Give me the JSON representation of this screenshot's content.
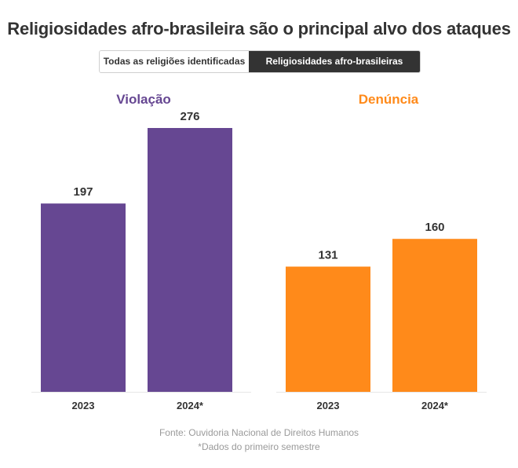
{
  "title": "Religiosidades afro-brasileira são o principal alvo dos ataques",
  "toggle": {
    "options": [
      "Todas as religiões identificadas",
      "Religiosidades afro-brasileiras"
    ],
    "selected": "Religiosidades afro-brasileiras"
  },
  "colors": {
    "violacao": "#664792",
    "denuncia": "#FF8A1A",
    "text": "#333333",
    "muted": "#9a9a9a"
  },
  "chart_data": [
    {
      "type": "bar",
      "title": "Violação",
      "categories": [
        "2023",
        "2024*"
      ],
      "values": [
        197,
        276
      ],
      "ylim": [
        0,
        276
      ],
      "color": "#664792"
    },
    {
      "type": "bar",
      "title": "Denúncia",
      "categories": [
        "2023",
        "2024*"
      ],
      "values": [
        131,
        160
      ],
      "ylim": [
        0,
        276
      ],
      "color": "#FF8A1A"
    }
  ],
  "footer": {
    "source": "Fonte: Ouvidoria Nacional de Direitos Humanos",
    "note": "*Dados do primeiro semestre"
  }
}
